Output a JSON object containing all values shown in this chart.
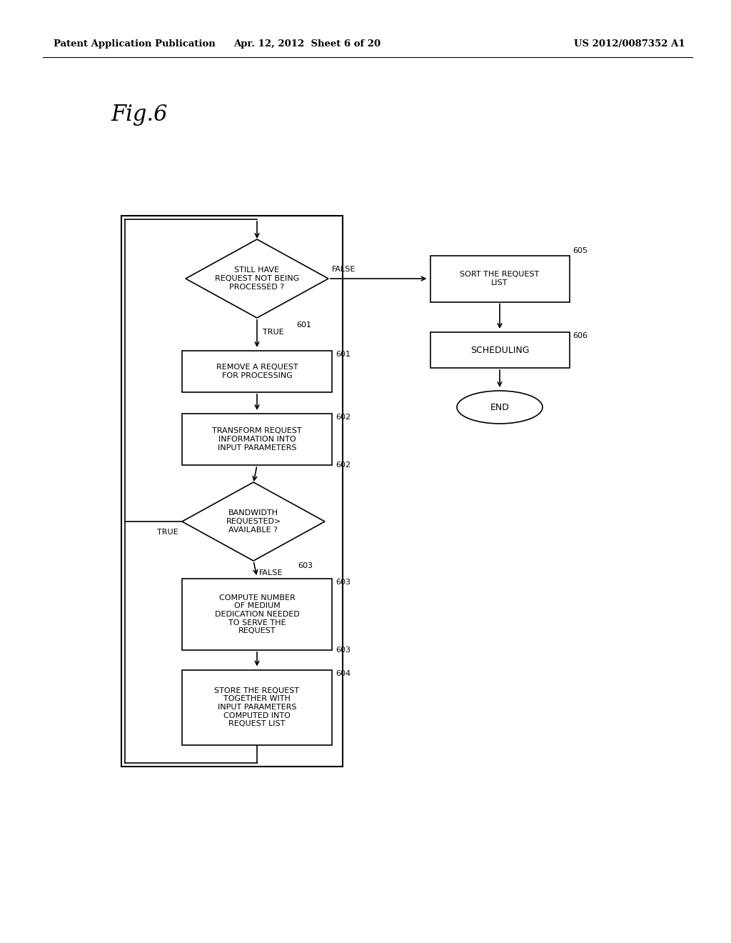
{
  "bg_color": "#ffffff",
  "header_left": "Patent Application Publication",
  "header_mid": "Apr. 12, 2012  Sheet 6 of 20",
  "header_right": "US 2012/0087352 A1",
  "fig_label": "Fig.6",
  "colors": {
    "black": "#000000",
    "white": "#ffffff"
  }
}
